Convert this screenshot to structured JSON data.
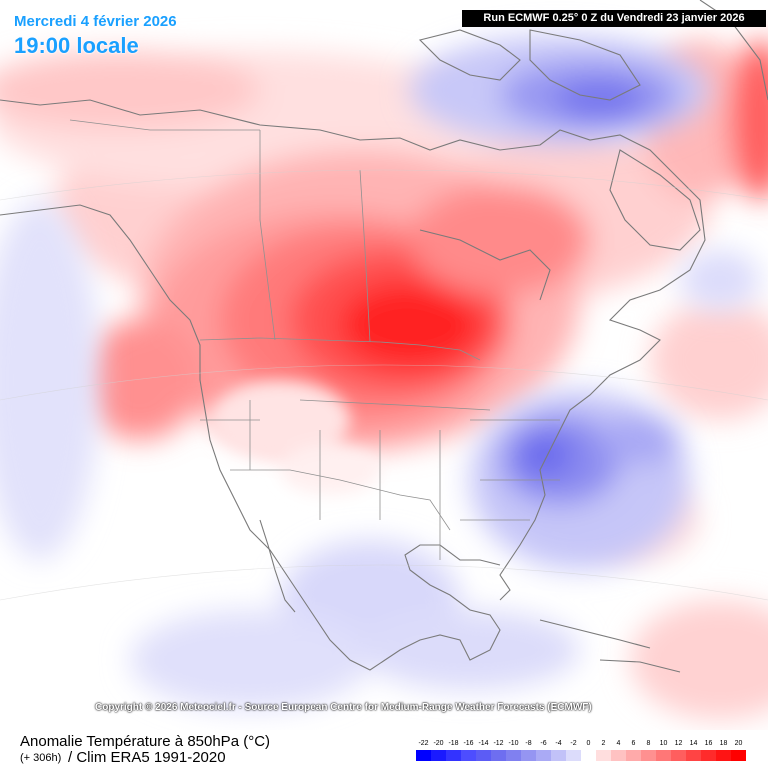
{
  "header": {
    "date_title": "Mercredi 4 février 2026",
    "time_title": "19:00 locale",
    "run_info": "Run ECMWF 0.25° 0 Z du Vendredi 23 janvier 2026"
  },
  "map": {
    "copyright": "Copyright © 2026 Meteociel.fr - Source European Centre for Medium-Range Weather Forecasts (ECMWF)"
  },
  "footer": {
    "variable": "Anomalie Température à 850hPa (°C)",
    "lead": "(+ 306h)",
    "clim": "/ Clim ERA5 1991-2020"
  },
  "legend": {
    "ticks": [
      "-22",
      "-20",
      "-18",
      "-16",
      "-14",
      "-12",
      "-10",
      "-8",
      "-6",
      "-4",
      "-2",
      "0",
      "2",
      "4",
      "6",
      "8",
      "10",
      "12",
      "14",
      "16",
      "18",
      "20"
    ],
    "colors": [
      "#0000ff",
      "#1a1aff",
      "#3333ff",
      "#4d4dff",
      "#5c5cf5",
      "#6e6ef0",
      "#8080f0",
      "#9595f2",
      "#aaaaf5",
      "#c2c2f8",
      "#dcdcfb",
      "#ffffff",
      "#ffdede",
      "#ffc2c2",
      "#ffaaaa",
      "#ff9090",
      "#ff7777",
      "#ff5e5e",
      "#ff4444",
      "#ff2b2b",
      "#ff1414",
      "#ff0000"
    ]
  },
  "colors": {
    "title": "#1aa0ff",
    "warm_max": "#ff0000",
    "cold_max": "#0000ff"
  }
}
